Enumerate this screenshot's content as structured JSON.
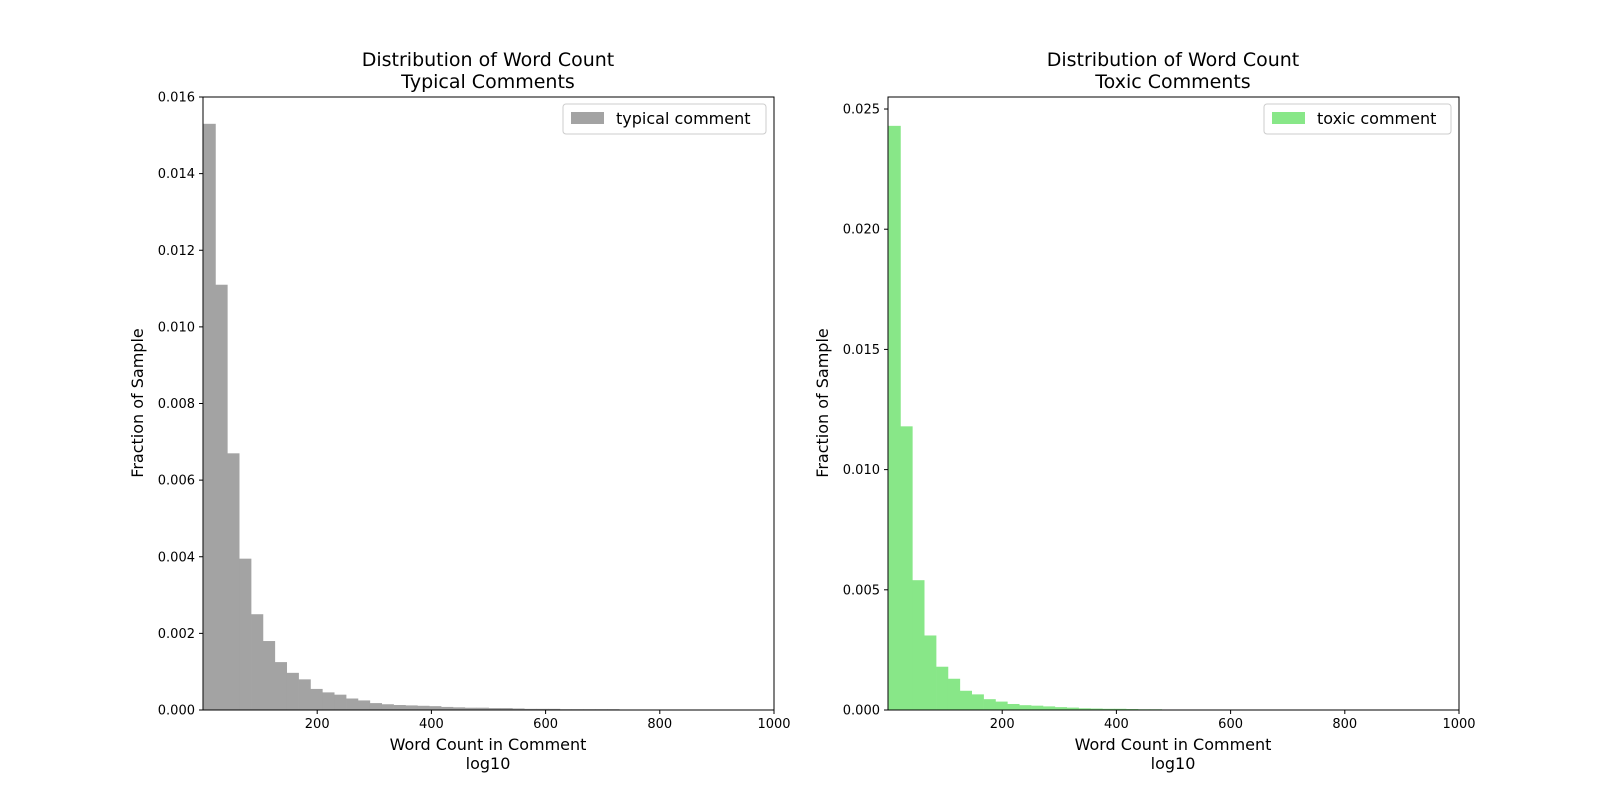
{
  "chart_data": [
    {
      "type": "bar",
      "title_line1": "Distribution of Word Count",
      "title_line2": "Typical Comments",
      "xlabel_line1": "Word Count in Comment",
      "xlabel_line2": "log10",
      "ylabel": "Fraction of Sample",
      "xlim": [
        0,
        1000
      ],
      "ylim": [
        0,
        0.016
      ],
      "xticks": [
        200,
        400,
        600,
        800,
        1000
      ],
      "xtick_labels": [
        "200",
        "400",
        "600",
        "800",
        "1000"
      ],
      "yticks": [
        0,
        0.002,
        0.004,
        0.006,
        0.008,
        0.01,
        0.012,
        0.014,
        0.016
      ],
      "ytick_labels": [
        "0.000",
        "0.002",
        "0.004",
        "0.006",
        "0.008",
        "0.010",
        "0.012",
        "0.014",
        "0.016"
      ],
      "bin_start": 1,
      "bin_width": 20.8,
      "values": [
        0.0153,
        0.0111,
        0.0067,
        0.00395,
        0.0025,
        0.0018,
        0.00125,
        0.00097,
        0.0008,
        0.00055,
        0.00046,
        0.0004,
        0.0003,
        0.00025,
        0.00018,
        0.00015,
        0.00013,
        0.00012,
        0.00011,
        0.0001,
        8e-05,
        7e-05,
        6e-05,
        6e-05,
        5e-05,
        5e-05,
        4e-05,
        3e-05,
        3e-05,
        3e-05,
        2e-05,
        2e-05,
        2e-05,
        2e-05,
        2e-05,
        1e-05,
        1e-05,
        1e-05,
        1e-05,
        1e-05,
        1e-05,
        1e-05,
        1e-05,
        1e-05,
        1e-05,
        1e-05,
        1e-05,
        1e-05
      ],
      "legend": "typical comment",
      "legend_position": "top-right",
      "color": "#a3a3a3",
      "grid": false
    },
    {
      "type": "bar",
      "title_line1": "Distribution of Word Count",
      "title_line2": "Toxic Comments",
      "xlabel_line1": "Word Count in Comment",
      "xlabel_line2": "log10",
      "ylabel": "Fraction of Sample",
      "xlim": [
        0,
        1000
      ],
      "ylim": [
        0,
        0.0255
      ],
      "xticks": [
        200,
        400,
        600,
        800,
        1000
      ],
      "xtick_labels": [
        "200",
        "400",
        "600",
        "800",
        "1000"
      ],
      "yticks": [
        0,
        0.005,
        0.01,
        0.015,
        0.02,
        0.025
      ],
      "ytick_labels": [
        "0.000",
        "0.005",
        "0.010",
        "0.015",
        "0.020",
        "0.025"
      ],
      "bin_start": 1,
      "bin_width": 20.8,
      "values": [
        0.0243,
        0.0118,
        0.0054,
        0.0031,
        0.0018,
        0.0013,
        0.0008,
        0.00065,
        0.00045,
        0.00035,
        0.00025,
        0.0002,
        0.00018,
        0.00015,
        0.00012,
        0.0001,
        7e-05,
        6e-05,
        5e-05,
        5e-05,
        4e-05,
        3e-05,
        3e-05,
        2e-05,
        2e-05,
        2e-05,
        1e-05,
        1e-05,
        1e-05,
        1e-05,
        1e-05,
        1e-05,
        1e-05,
        1e-05,
        1e-05,
        1e-05,
        1e-05,
        1e-05,
        1e-05,
        1e-05,
        1e-05,
        1e-05,
        1e-05,
        1e-05,
        1e-05,
        1e-05,
        1e-05,
        1e-05
      ],
      "legend": "toxic comment",
      "legend_position": "top-right",
      "color": "#88e788",
      "grid": false
    }
  ]
}
